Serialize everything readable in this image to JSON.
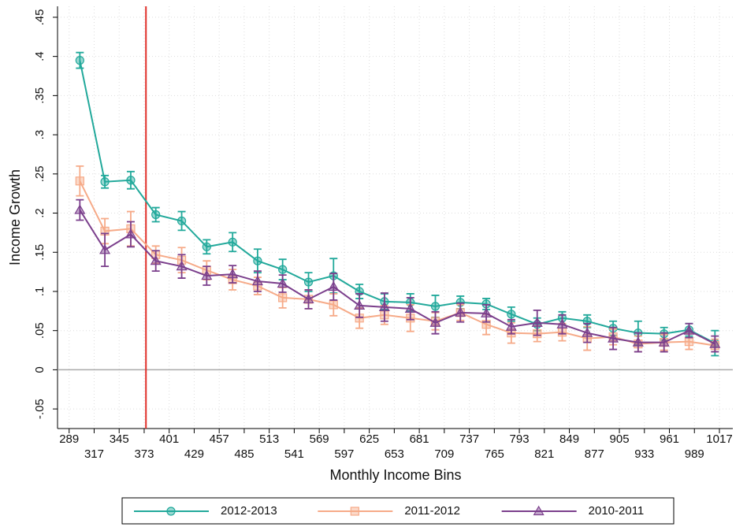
{
  "chart_data": {
    "type": "line",
    "xlabel": "Monthly Income Bins",
    "ylabel": "Income Growth",
    "x": [
      301,
      329,
      358,
      386,
      415,
      443,
      472,
      500,
      528,
      557,
      585,
      614,
      642,
      671,
      699,
      727,
      756,
      784,
      813,
      841,
      869,
      898,
      926,
      955,
      983,
      1012
    ],
    "series": [
      {
        "name": "2012-2013",
        "color": "#22a99b",
        "marker": "circle",
        "values": [
          0.395,
          0.24,
          0.242,
          0.198,
          0.19,
          0.157,
          0.163,
          0.139,
          0.128,
          0.112,
          0.12,
          0.1,
          0.087,
          0.086,
          0.081,
          0.086,
          0.084,
          0.071,
          0.058,
          0.066,
          0.062,
          0.053,
          0.047,
          0.046,
          0.051,
          0.034
        ],
        "errors": [
          0.01,
          0.008,
          0.011,
          0.009,
          0.012,
          0.009,
          0.012,
          0.015,
          0.013,
          0.012,
          0.022,
          0.009,
          0.01,
          0.011,
          0.014,
          0.008,
          0.007,
          0.009,
          0.008,
          0.008,
          0.008,
          0.009,
          0.015,
          0.008,
          0.008,
          0.016
        ]
      },
      {
        "name": "2011-2012",
        "color": "#f6aa88",
        "marker": "square",
        "values": [
          0.241,
          0.177,
          0.18,
          0.147,
          0.14,
          0.127,
          0.115,
          0.107,
          0.092,
          0.09,
          0.083,
          0.066,
          0.07,
          0.066,
          0.062,
          0.073,
          0.058,
          0.047,
          0.046,
          0.048,
          0.04,
          0.042,
          0.033,
          0.035,
          0.036,
          0.031
        ],
        "errors": [
          0.019,
          0.016,
          0.022,
          0.011,
          0.016,
          0.012,
          0.013,
          0.011,
          0.013,
          0.012,
          0.014,
          0.013,
          0.012,
          0.017,
          0.011,
          0.01,
          0.013,
          0.013,
          0.01,
          0.011,
          0.015,
          0.01,
          0.01,
          0.01,
          0.01,
          0.008
        ]
      },
      {
        "name": "2010-2011",
        "color": "#7b3f8c",
        "marker": "triangle",
        "values": [
          0.204,
          0.153,
          0.173,
          0.139,
          0.132,
          0.12,
          0.122,
          0.113,
          0.11,
          0.09,
          0.106,
          0.082,
          0.08,
          0.078,
          0.06,
          0.073,
          0.072,
          0.055,
          0.06,
          0.058,
          0.047,
          0.04,
          0.035,
          0.035,
          0.05,
          0.033
        ],
        "errors": [
          0.013,
          0.021,
          0.016,
          0.013,
          0.015,
          0.012,
          0.011,
          0.013,
          0.011,
          0.012,
          0.017,
          0.015,
          0.018,
          0.014,
          0.014,
          0.012,
          0.011,
          0.009,
          0.016,
          0.012,
          0.012,
          0.014,
          0.012,
          0.012,
          0.009,
          0.01
        ]
      }
    ],
    "xlim": [
      276,
      1032
    ],
    "xticks": [
      289,
      317,
      345,
      373,
      401,
      429,
      457,
      485,
      513,
      541,
      569,
      597,
      625,
      653,
      681,
      709,
      737,
      765,
      793,
      821,
      849,
      877,
      905,
      933,
      961,
      989,
      1017
    ],
    "ylim": [
      -0.075,
      0.464
    ],
    "yticks": [
      {
        "value": -0.05,
        "label": "-.05"
      },
      0,
      {
        "value": 0.05,
        "label": ".05"
      },
      {
        "value": 0.1,
        "label": ".1"
      },
      {
        "value": 0.15,
        "label": ".15"
      },
      {
        "value": 0.2,
        "label": ".2"
      },
      {
        "value": 0.25,
        "label": ".25"
      },
      {
        "value": 0.3,
        "label": ".3"
      },
      {
        "value": 0.35,
        "label": ".35"
      },
      {
        "value": 0.4,
        "label": ".4"
      },
      {
        "value": 0.45,
        "label": ".45"
      }
    ],
    "hline": 0,
    "hline_color": "#aaaaaa",
    "vline": 375,
    "vline_color": "#e0302a",
    "grid": true,
    "legend": "bottom"
  }
}
